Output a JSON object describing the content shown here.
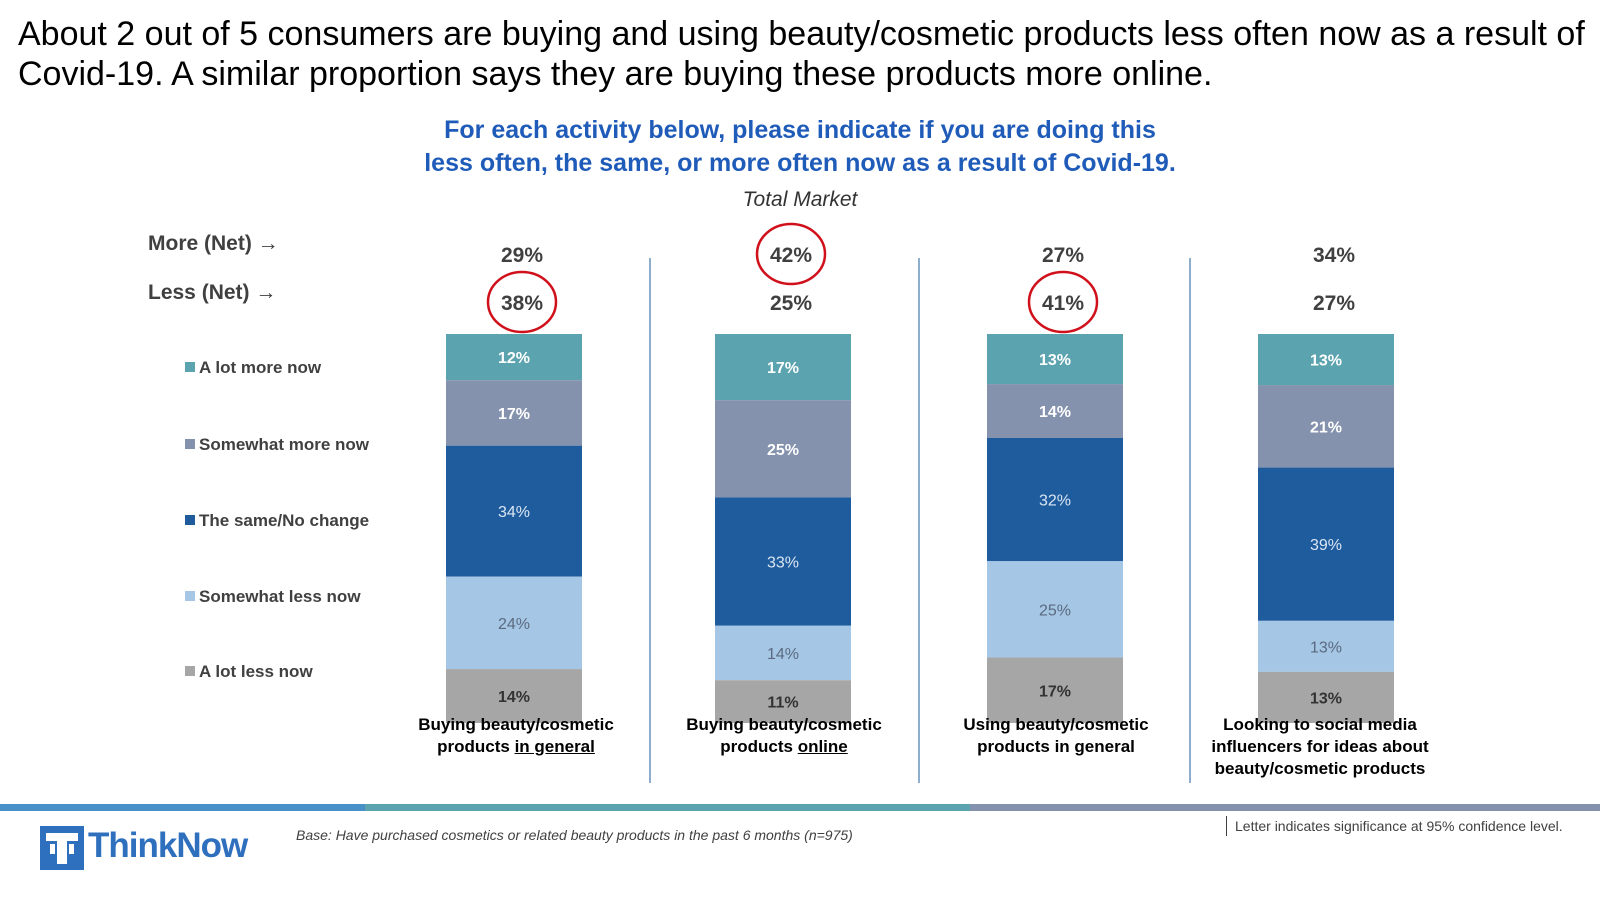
{
  "headline": "About 2 out of 5 consumers are buying and using beauty/cosmetic products less often now as a result of Covid-19. A similar proportion says they are buying these products more online.",
  "question": {
    "line1": "For each activity below, please indicate if you are doing this",
    "line2": "less often, the same, or more often now as a result of Covid-19."
  },
  "subtitle": "Total Market",
  "net_labels": {
    "more": "More (Net) →",
    "less": "Less (Net) →"
  },
  "legend": [
    {
      "label": "A lot more now",
      "color": "#5BA3AE"
    },
    {
      "label": "Somewhat more now",
      "color": "#8592AD"
    },
    {
      "label": "The same/No change",
      "color": "#1F5C9E"
    },
    {
      "label": "Somewhat less now",
      "color": "#A5C6E4"
    },
    {
      "label": "A lot less now",
      "color": "#A6A6A6"
    }
  ],
  "columns": [
    {
      "label_plain": "Buying beauty/cosmetic products ",
      "label_underlined": "in general",
      "more_net": "29%",
      "less_net": "38%"
    },
    {
      "label_plain": "Buying beauty/cosmetic products ",
      "label_underlined": "online",
      "more_net": "42%",
      "less_net": "25%"
    },
    {
      "label_plain": "Using beauty/cosmetic products in general",
      "label_underlined": "",
      "more_net": "27%",
      "less_net": "41%"
    },
    {
      "label_plain": "Looking to social media influencers for ideas about beauty/cosmetic products",
      "label_underlined": "",
      "more_net": "34%",
      "less_net": "27%"
    }
  ],
  "chart_data": {
    "type": "bar",
    "stacked": true,
    "categories": [
      "Buying beauty/cosmetic products in general",
      "Buying beauty/cosmetic products online",
      "Using beauty/cosmetic products in general",
      "Looking to social media influencers for ideas about beauty/cosmetic products"
    ],
    "series": [
      {
        "name": "A lot more now",
        "values": [
          12,
          17,
          13,
          13
        ],
        "color": "#5BA3AE"
      },
      {
        "name": "Somewhat more now",
        "values": [
          17,
          25,
          14,
          21
        ],
        "color": "#8592AD"
      },
      {
        "name": "The same/No change",
        "values": [
          34,
          33,
          32,
          39
        ],
        "color": "#1F5C9E"
      },
      {
        "name": "Somewhat less now",
        "values": [
          24,
          14,
          25,
          13
        ],
        "color": "#A5C6E4"
      },
      {
        "name": "A lot less now",
        "values": [
          14,
          11,
          17,
          13
        ],
        "color": "#A6A6A6"
      }
    ],
    "more_net": [
      29,
      42,
      27,
      34
    ],
    "less_net": [
      38,
      25,
      41,
      27
    ],
    "highlighted": [
      {
        "category": 0,
        "metric": "less_net"
      },
      {
        "category": 1,
        "metric": "more_net"
      },
      {
        "category": 2,
        "metric": "less_net"
      }
    ],
    "unit": "%"
  },
  "footer": {
    "base_note": "Base: Have purchased cosmetics or related beauty products in the past 6 months (n=975)",
    "sig_note": "Letter indicates significance at 95% confidence level.",
    "logo_text": "ThinkNow"
  }
}
